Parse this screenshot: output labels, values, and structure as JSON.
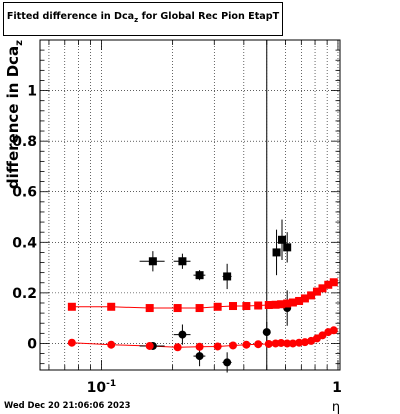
{
  "chart_data": {
    "type": "scatter",
    "title": {
      "prefix": "Fitted difference in Dca",
      "subscript": "z",
      "suffix": " for Global Rec Pion EtapT"
    },
    "ylabel": {
      "prefix": "difference in Dca",
      "subscript": "z"
    },
    "xlabel": "η",
    "x_scale": "log",
    "xlim": [
      0.055,
      1.02
    ],
    "ylim": [
      -0.105,
      1.2
    ],
    "grid": true,
    "y_ticks": [
      0,
      0.2,
      0.4,
      0.6,
      0.8,
      1
    ],
    "y_tick_labels": [
      "0",
      "0.2",
      "0.4",
      "0.6",
      "0.8",
      "1"
    ],
    "x_ticks_labeled": [
      0.1,
      1
    ],
    "x_tick_labels": [
      {
        "base": "10",
        "exp": "-1"
      },
      {
        "base": "1",
        "exp": ""
      }
    ],
    "vertical_line_x": 0.5,
    "series": [
      {
        "marker": "square",
        "color": "#000000",
        "points": [
          {
            "x": 0.165,
            "y": 0.325,
            "xerr": 0.02,
            "yerr": 0.04
          },
          {
            "x": 0.22,
            "y": 0.325,
            "xerr": 0.018,
            "yerr": 0.03
          },
          {
            "x": 0.26,
            "y": 0.27,
            "xerr": 0.015,
            "yerr": 0.02
          },
          {
            "x": 0.34,
            "y": 0.265,
            "xerr": 0.015,
            "yerr": 0.05
          },
          {
            "x": 0.55,
            "y": 0.36,
            "xerr": 0.01,
            "yerr": 0.09
          },
          {
            "x": 0.58,
            "y": 0.41,
            "xerr": 0.01,
            "yerr": 0.08
          },
          {
            "x": 0.61,
            "y": 0.38,
            "xerr": 0.01,
            "yerr": 0.06
          }
        ]
      },
      {
        "marker": "circle",
        "color": "#000000",
        "points": [
          {
            "x": 0.165,
            "y": -0.01,
            "xerr": 0.02,
            "yerr": 0.01
          },
          {
            "x": 0.22,
            "y": 0.035,
            "xerr": 0.018,
            "yerr": 0.04
          },
          {
            "x": 0.26,
            "y": -0.05,
            "xerr": 0.015,
            "yerr": 0.04
          },
          {
            "x": 0.34,
            "y": -0.075,
            "xerr": 0.015,
            "yerr": 0.04
          },
          {
            "x": 0.5,
            "y": 0.045,
            "xerr": 0.01,
            "yerr": 0.04
          },
          {
            "x": 0.61,
            "y": 0.14,
            "xerr": 0.01,
            "yerr": 0.07
          }
        ]
      },
      {
        "marker": "square",
        "color": "#ff0000",
        "points": [
          {
            "x": 0.075,
            "y": 0.145
          },
          {
            "x": 0.11,
            "y": 0.145
          },
          {
            "x": 0.16,
            "y": 0.14
          },
          {
            "x": 0.21,
            "y": 0.14
          },
          {
            "x": 0.26,
            "y": 0.14
          },
          {
            "x": 0.31,
            "y": 0.145
          },
          {
            "x": 0.36,
            "y": 0.148
          },
          {
            "x": 0.41,
            "y": 0.148
          },
          {
            "x": 0.46,
            "y": 0.15
          },
          {
            "x": 0.51,
            "y": 0.152
          },
          {
            "x": 0.545,
            "y": 0.153
          },
          {
            "x": 0.575,
            "y": 0.155
          },
          {
            "x": 0.61,
            "y": 0.158
          },
          {
            "x": 0.645,
            "y": 0.162
          },
          {
            "x": 0.685,
            "y": 0.168
          },
          {
            "x": 0.725,
            "y": 0.178
          },
          {
            "x": 0.77,
            "y": 0.19
          },
          {
            "x": 0.815,
            "y": 0.205
          },
          {
            "x": 0.86,
            "y": 0.218
          },
          {
            "x": 0.91,
            "y": 0.232
          },
          {
            "x": 0.96,
            "y": 0.242
          }
        ]
      },
      {
        "marker": "circle",
        "color": "#ff0000",
        "points": [
          {
            "x": 0.075,
            "y": 0.003
          },
          {
            "x": 0.11,
            "y": -0.005
          },
          {
            "x": 0.16,
            "y": -0.01
          },
          {
            "x": 0.21,
            "y": -0.015
          },
          {
            "x": 0.26,
            "y": -0.013
          },
          {
            "x": 0.31,
            "y": -0.012
          },
          {
            "x": 0.36,
            "y": -0.008
          },
          {
            "x": 0.41,
            "y": -0.005
          },
          {
            "x": 0.46,
            "y": -0.003
          },
          {
            "x": 0.51,
            "y": -0.002
          },
          {
            "x": 0.545,
            "y": 0.0
          },
          {
            "x": 0.575,
            "y": 0.002
          },
          {
            "x": 0.61,
            "y": 0.0
          },
          {
            "x": 0.645,
            "y": 0.0
          },
          {
            "x": 0.685,
            "y": 0.003
          },
          {
            "x": 0.725,
            "y": 0.005
          },
          {
            "x": 0.77,
            "y": 0.01
          },
          {
            "x": 0.815,
            "y": 0.02
          },
          {
            "x": 0.86,
            "y": 0.032
          },
          {
            "x": 0.91,
            "y": 0.045
          },
          {
            "x": 0.96,
            "y": 0.052
          }
        ]
      }
    ]
  },
  "footer": {
    "timestamp": "Wed Dec 20 21:06:06 2023"
  }
}
